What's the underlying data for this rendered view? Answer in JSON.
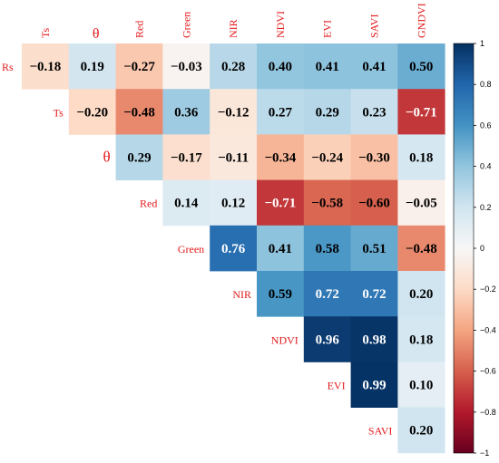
{
  "chart_data": {
    "type": "heatmap",
    "title": "",
    "variables": [
      "Rs",
      "Ts",
      "θ",
      "Red",
      "Green",
      "NIR",
      "NDVI",
      "EVI",
      "SAVI",
      "GNDVI"
    ],
    "x_labels": [
      "Ts",
      "θ",
      "Red",
      "Green",
      "NIR",
      "NDVI",
      "EVI",
      "SAVI",
      "GNDVI"
    ],
    "y_labels": [
      "Rs",
      "Ts",
      "θ",
      "Red",
      "Green",
      "NIR",
      "NDVI",
      "EVI",
      "SAVI"
    ],
    "triangle": "upper",
    "values": [
      [
        -0.18,
        0.19,
        -0.27,
        -0.03,
        0.28,
        0.4,
        0.41,
        0.41,
        0.5
      ],
      [
        null,
        -0.2,
        -0.48,
        0.36,
        -0.12,
        0.27,
        0.29,
        0.23,
        -0.71
      ],
      [
        null,
        null,
        0.29,
        -0.17,
        -0.11,
        -0.34,
        -0.24,
        -0.3,
        0.18
      ],
      [
        null,
        null,
        null,
        0.14,
        0.12,
        -0.71,
        -0.58,
        -0.6,
        -0.05
      ],
      [
        null,
        null,
        null,
        null,
        0.76,
        0.41,
        0.58,
        0.51,
        -0.48
      ],
      [
        null,
        null,
        null,
        null,
        null,
        0.59,
        0.72,
        0.72,
        0.2
      ],
      [
        null,
        null,
        null,
        null,
        null,
        null,
        0.96,
        0.98,
        0.18
      ],
      [
        null,
        null,
        null,
        null,
        null,
        null,
        null,
        0.99,
        0.1
      ],
      [
        null,
        null,
        null,
        null,
        null,
        null,
        null,
        null,
        0.2
      ]
    ],
    "colorbar": {
      "min": -1,
      "max": 1,
      "ticks": [
        "1",
        "0.8",
        "0.6",
        "0.4",
        "0.2",
        "0",
        "−0.2",
        "−0.4",
        "−0.6",
        "−0.8",
        "−1"
      ],
      "colormap": "RdBu",
      "colors": [
        "#67001f",
        "#b2182b",
        "#d6604d",
        "#f4a582",
        "#fddbc7",
        "#f7f7f7",
        "#d1e5f0",
        "#92c5de",
        "#4393c3",
        "#2166ac",
        "#053061"
      ]
    },
    "label_color": "#e31a1c",
    "grid": false,
    "legend": "right"
  }
}
